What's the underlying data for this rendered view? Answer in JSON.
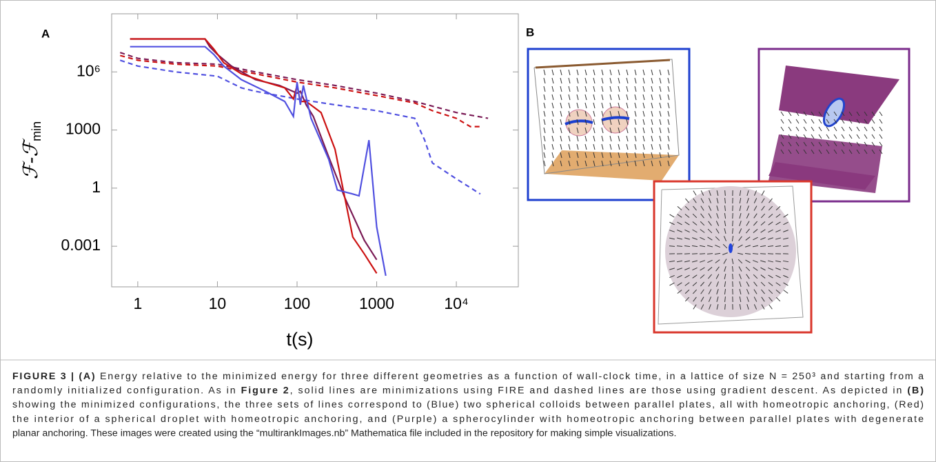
{
  "chart_data": {
    "type": "line",
    "panel_label": "A",
    "xlabel": "t(s)",
    "ylabel": "ℱ-ℱ",
    "ylabel_sub": "min",
    "log_x": true,
    "log_y": true,
    "grid": false,
    "xlim": [
      0.47,
      60000
    ],
    "ylim": [
      8e-06,
      1000000000.0
    ],
    "xticks": [
      1,
      10,
      100,
      1000,
      {
        "value": 10000,
        "label": "10⁴"
      }
    ],
    "yticks": [
      0.001,
      1,
      1000,
      {
        "value": 1000000,
        "label": "10⁶"
      }
    ],
    "series": [
      {
        "color": "#7a1a55",
        "style": "dashed",
        "x": [
          0.6,
          1,
          3,
          10,
          30,
          100,
          300,
          1000,
          3000,
          10000,
          25000
        ],
        "values": [
          10000000,
          5000000,
          3000000,
          2500000,
          1000000,
          400000,
          200000,
          80000,
          30000,
          8000,
          4000
        ]
      },
      {
        "color": "#cc1111",
        "style": "dashed",
        "x": [
          0.6,
          1,
          3,
          10,
          30,
          100,
          300,
          1000,
          3000,
          5000,
          10000,
          15000,
          20000
        ],
        "values": [
          7000000,
          4000000,
          2500000,
          2000000,
          800000,
          300000,
          150000,
          60000,
          25000,
          10000,
          4000,
          1500,
          1500
        ]
      },
      {
        "color": "#5050e0",
        "style": "dashed",
        "x": [
          0.6,
          1,
          3,
          10,
          20,
          30,
          100,
          300,
          1000,
          3000,
          4000,
          5000,
          10000,
          20000
        ],
        "values": [
          4000000,
          2000000,
          1000000,
          600000,
          150000,
          100000,
          40000,
          20000,
          10000,
          4000,
          300,
          20,
          3,
          0.5
        ]
      },
      {
        "color": "#7a1a55",
        "style": "solid",
        "x": [
          0.8,
          7,
          8,
          10,
          15,
          30,
          60,
          100,
          110,
          130,
          160,
          250,
          400,
          700,
          1000
        ],
        "values": [
          50000000,
          50000000,
          20000000,
          8000000,
          2000000,
          400000,
          200000,
          80000,
          100000,
          20000,
          5000,
          40,
          0.3,
          0.002,
          0.0002
        ]
      },
      {
        "color": "#cc1111",
        "style": "solid",
        "x": [
          0.8,
          7,
          9,
          12,
          20,
          40,
          70,
          90,
          100,
          110,
          130,
          200,
          300,
          500,
          700,
          1000
        ],
        "values": [
          50000000,
          50000000,
          15000000,
          3000000,
          800000,
          300000,
          150000,
          40000,
          200000,
          30000,
          30000,
          8000,
          100,
          0.003,
          0.0004,
          4e-05
        ]
      },
      {
        "color": "#5050e0",
        "style": "solid",
        "x": [
          0.8,
          7,
          9,
          12,
          20,
          40,
          70,
          90,
          100,
          110,
          120,
          150,
          250,
          320,
          500,
          600,
          800,
          1000,
          1300
        ],
        "values": [
          20000000,
          20000000,
          8000000,
          2000000,
          400000,
          100000,
          30000,
          5000,
          300000,
          20000,
          200000,
          4000,
          30,
          0.8,
          0.5,
          0.4,
          300,
          0.01,
          3e-05
        ]
      }
    ]
  },
  "panel_b_label": "B",
  "caption": [
    [
      {
        "text": "FIGURE 3 | (A)",
        "bold": true
      },
      {
        "text": " Energy relative to the minimized energy for three different geometries as a function of wall-clock time, in a lattice of size N = 250³ and starting from a"
      }
    ],
    [
      {
        "text": "randomly initialized configuration. As in "
      },
      {
        "text": "Figure 2",
        "bold": true
      },
      {
        "text": ", solid lines are minimizations using FIRE and dashed lines are those using gradient descent. As depicted in "
      },
      {
        "text": "(B)",
        "bold": true
      }
    ],
    [
      {
        "text": "showing the minimized configurations, the three sets of lines correspond to (Blue) two spherical colloids between parallel plates, all with homeotropic anchoring, (Red)"
      }
    ],
    [
      {
        "text": "the interior of a spherical droplet with homeotropic anchoring, and (Purple) a spherocylinder with homeotropic anchoring between parallel plates with degenerate"
      }
    ],
    [
      {
        "text": "planar anchoring. These images were created using the “multirankImages.nb” Mathematica file included in the repository for making simple visualizations."
      }
    ]
  ]
}
